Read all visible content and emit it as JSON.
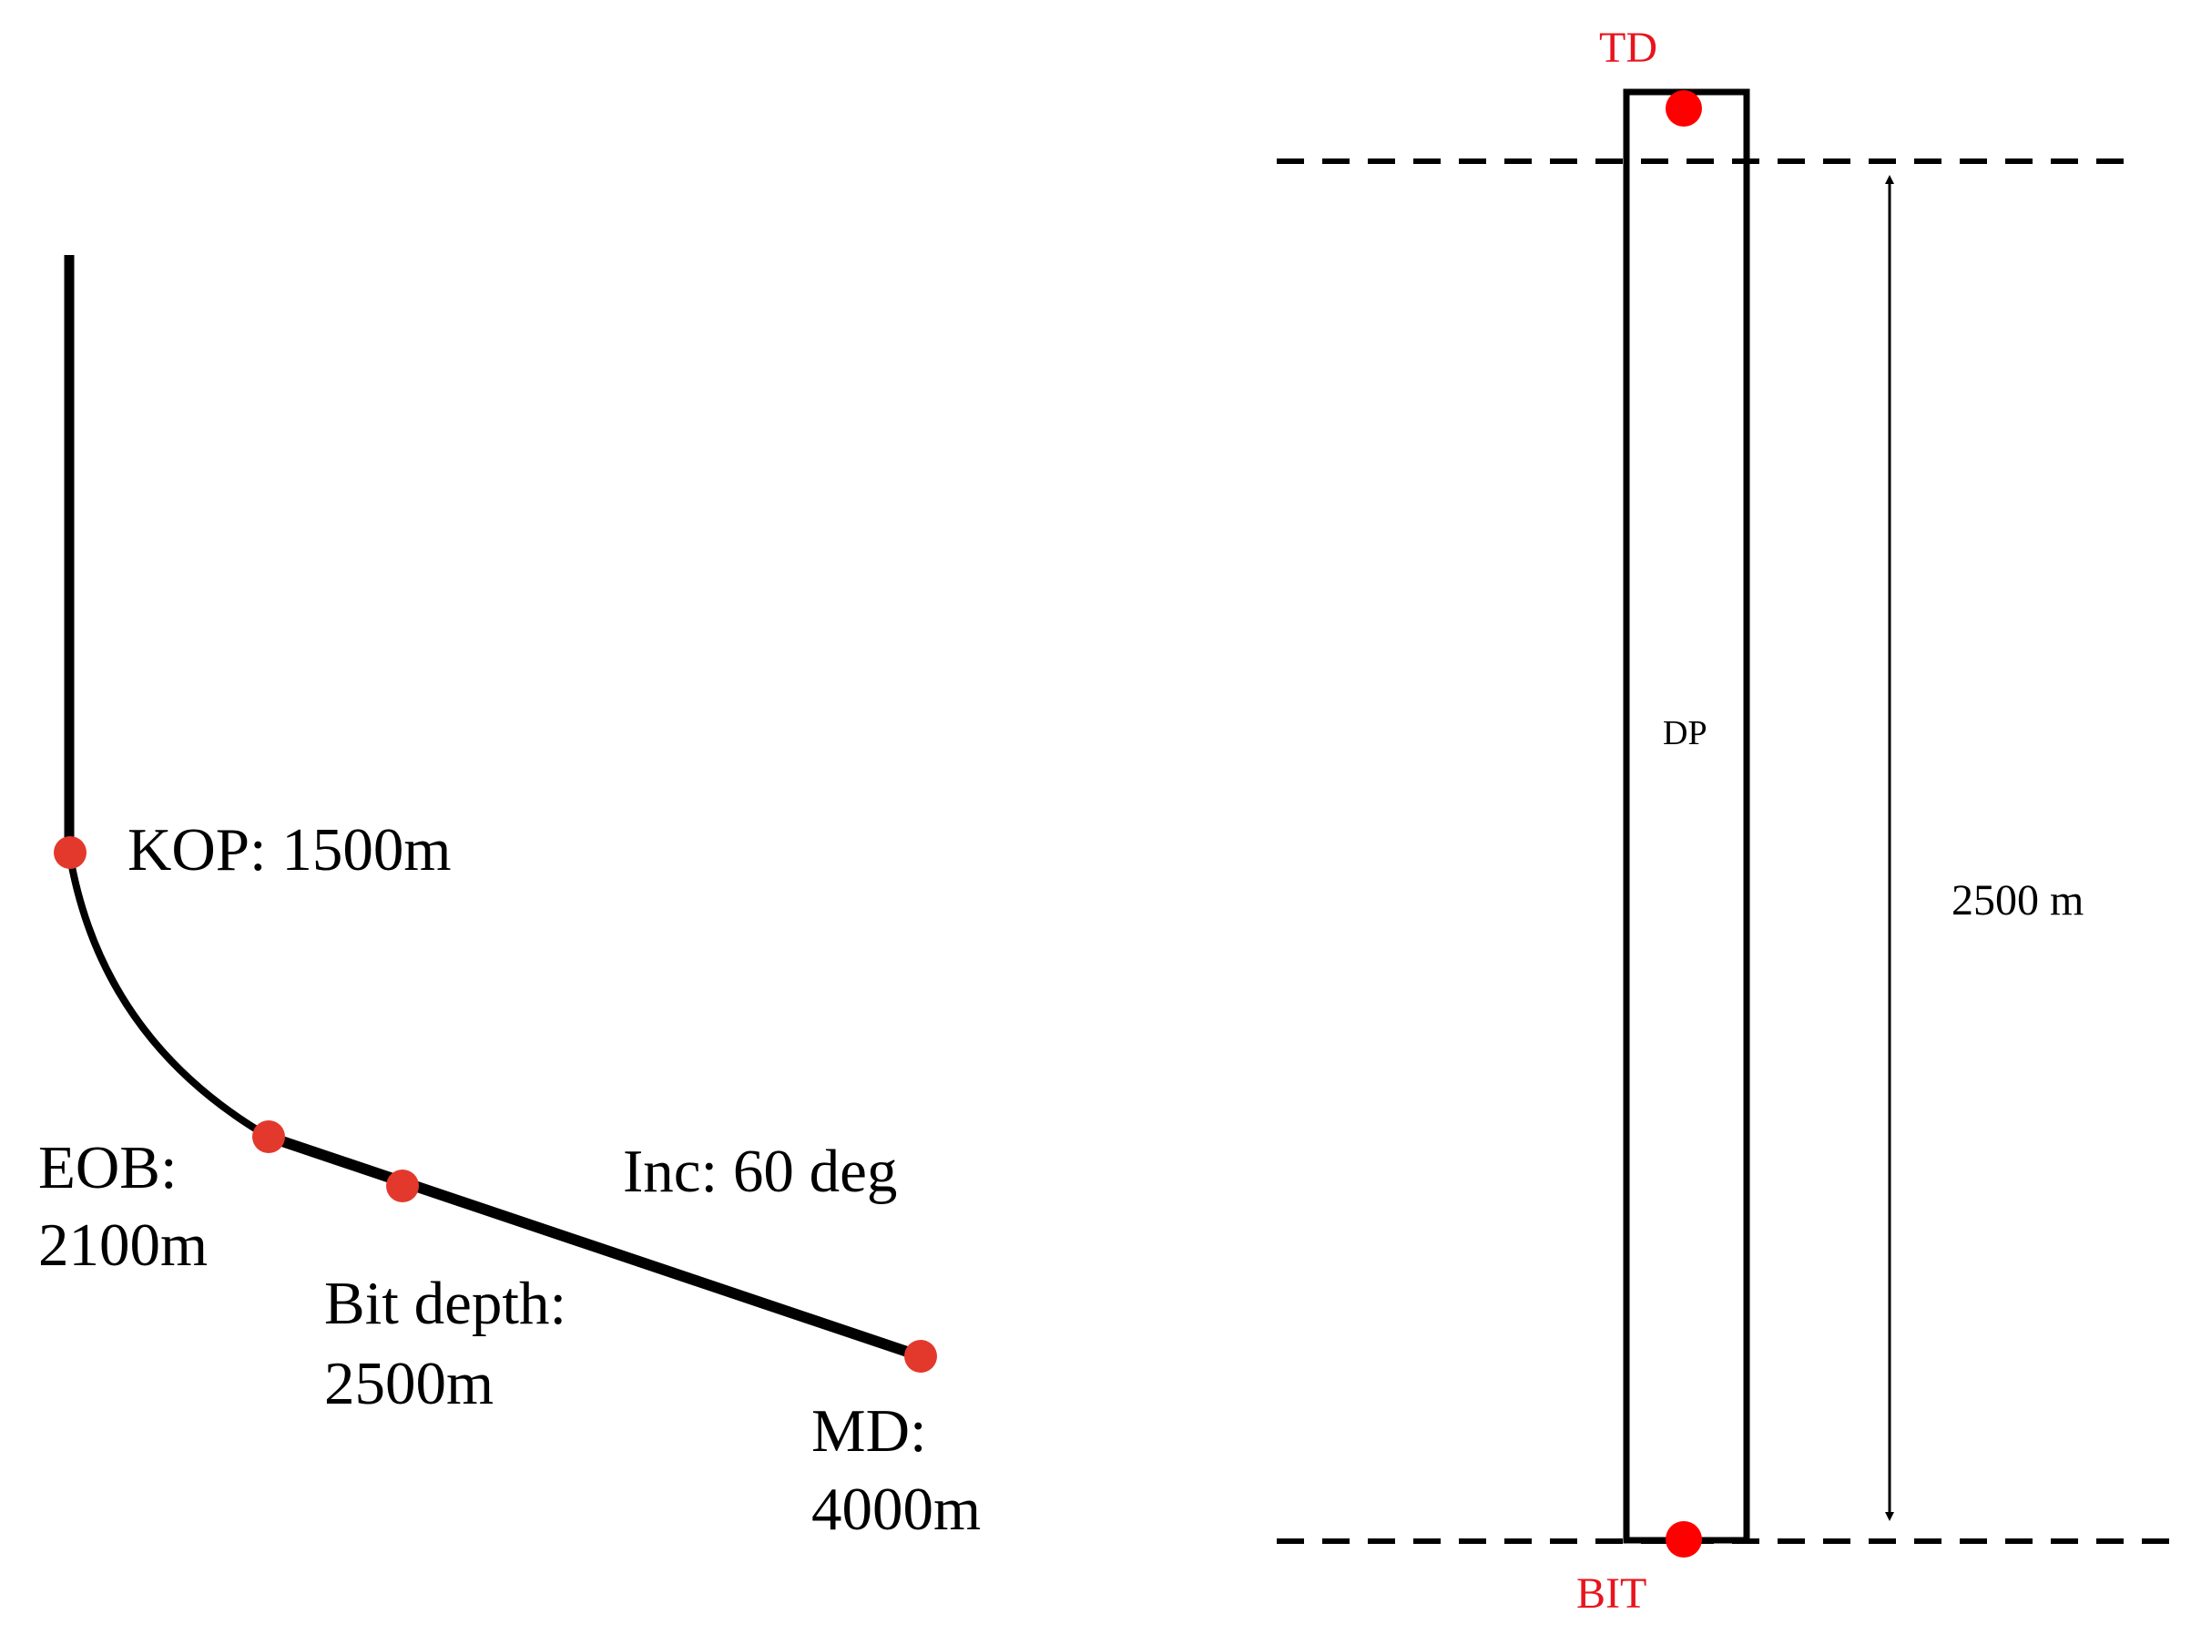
{
  "trajectory": {
    "kop_label": "KOP: 1500m",
    "eob_label_line1": "EOB:",
    "eob_label_line2": "2100m",
    "bit_label_line1": "Bit depth:",
    "bit_label_line2": "2500m",
    "inc_label": "Inc: 60 deg",
    "md_label_line1": "MD:",
    "md_label_line2": "4000m"
  },
  "pipe": {
    "td_label": "TD",
    "dp_label": "DP",
    "bit_label": "BIT",
    "length_label": "2500 m"
  },
  "colors": {
    "marker": "#e2392c",
    "red_label": "#e8141c",
    "line": "#000000"
  }
}
